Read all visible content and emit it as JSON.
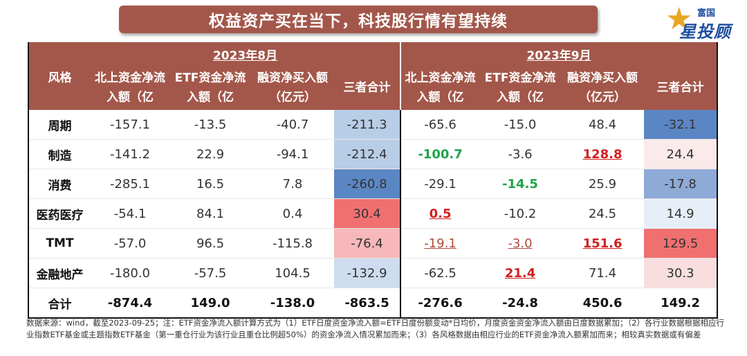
{
  "title": "权益资产买在当下，科技股行情有望持续",
  "logo": {
    "small_text": "富国",
    "big_text": "星投顾",
    "icon": "star-icon"
  },
  "table": {
    "style_header": "风格",
    "months": [
      "2023年8月",
      "2023年9月"
    ],
    "columns": [
      "北上资金净流入额（亿",
      "ETF资金净流入额（亿",
      "融资净买入额（亿元）",
      "三者合计"
    ],
    "rows": [
      {
        "label": "周期",
        "aug": [
          "-157.1",
          "-13.5",
          "-40.7",
          "-211.3"
        ],
        "sep": [
          "-65.6",
          "-15.0",
          "48.4",
          "-32.1"
        ]
      },
      {
        "label": "制造",
        "aug": [
          "-141.2",
          "22.9",
          "-94.1",
          "-212.4"
        ],
        "sep": [
          "-100.7",
          "-3.6",
          "128.8",
          "24.4"
        ]
      },
      {
        "label": "消费",
        "aug": [
          "-285.1",
          "16.5",
          "7.8",
          "-260.8"
        ],
        "sep": [
          "-29.1",
          "-14.5",
          "25.9",
          "-17.8"
        ]
      },
      {
        "label": "医药医疗",
        "aug": [
          "-54.1",
          "84.1",
          "0.4",
          "30.4"
        ],
        "sep": [
          "0.5",
          "-10.2",
          "24.5",
          "14.9"
        ]
      },
      {
        "label": "TMT",
        "aug": [
          "-57.0",
          "96.5",
          "-115.8",
          "-76.4"
        ],
        "sep": [
          "-19.1",
          "-3.0",
          "151.6",
          "129.5"
        ]
      },
      {
        "label": "金融地产",
        "aug": [
          "-180.0",
          "-57.5",
          "104.5",
          "-132.9"
        ],
        "sep": [
          "-62.5",
          "21.4",
          "71.4",
          "30.3"
        ]
      }
    ],
    "total": {
      "label": "合计",
      "aug": [
        "-874.4",
        "149.0",
        "-138.0",
        "-863.5"
      ],
      "sep": [
        "-276.6",
        "-24.8",
        "450.6",
        "149.2"
      ]
    },
    "heat_colors": {
      "aug": [
        "#b8cde6",
        "#b8cde6",
        "#5b86c4",
        "#f07070",
        "#f6b8b8",
        "#cddcee"
      ],
      "sep": [
        "#5b86c4",
        "#fbeaea",
        "#8eaad6",
        "#e8eef7",
        "#f07070",
        "#f8dede"
      ]
    },
    "highlight_colors": {
      "green": "#1fa34a",
      "red": "#d21f1f",
      "header": "#a3574a"
    }
  },
  "footnote": "数据来源：wind，截至2023-09-25；注：ETF资金净流入额计算方式为（1）ETF日度资金净流入额=ETF日度份额变动*日均价，月度资金资金净流入额由日度数据累加；（2）各行业数据根据相应行业指数ETF基金或主题指数ETF基金（第一重仓行业为该行业且重仓比例超50%）的资金净流入情况累加而来；（3）各风格数据由相应行业的ETF资金净流入额累加而来；相较真实数据或有偏差"
}
